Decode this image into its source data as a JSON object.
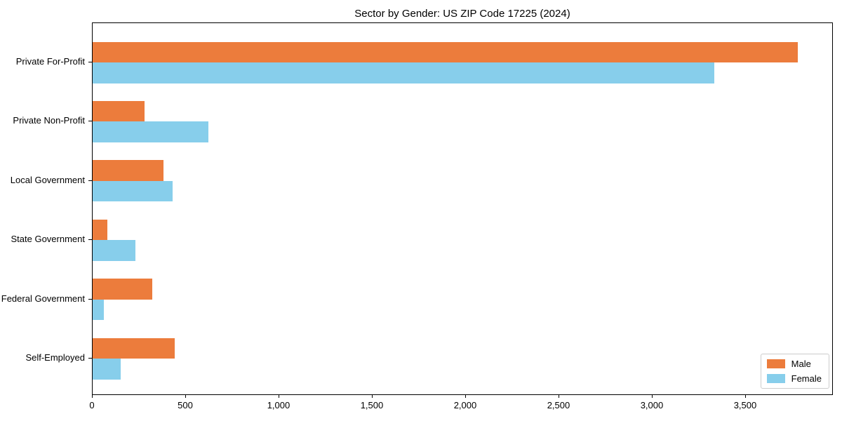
{
  "title": "Sector by Gender: US ZIP Code 17225 (2024)",
  "chart_data": {
    "type": "bar",
    "orientation": "horizontal",
    "title": "Sector by Gender: US ZIP Code 17225 (2024)",
    "xlabel": "",
    "ylabel": "",
    "categories": [
      "Private For-Profit",
      "Private Non-Profit",
      "Local Government",
      "State Government",
      "Federal Government",
      "Self-Employed"
    ],
    "series": [
      {
        "name": "Male",
        "color": "#ec7c3c",
        "values": [
          3780,
          280,
          380,
          80,
          320,
          440
        ]
      },
      {
        "name": "Female",
        "color": "#87ceeb",
        "values": [
          3330,
          620,
          430,
          230,
          60,
          150
        ]
      }
    ],
    "xlim": [
      0,
      3970
    ],
    "xticks": [
      0,
      500,
      1000,
      1500,
      2000,
      2500,
      3000,
      3500
    ],
    "xtick_labels": [
      "0",
      "500",
      "1,000",
      "1,500",
      "2,000",
      "2,500",
      "3,000",
      "3,500"
    ],
    "grid": false,
    "legend": {
      "position": "lower right",
      "entries": [
        "Male",
        "Female"
      ]
    }
  },
  "colors": {
    "male_bar": "#ec7c3c",
    "female_bar": "#87ceeb",
    "axis": "#000000",
    "legend_border": "#cccccc",
    "background": "#ffffff"
  }
}
